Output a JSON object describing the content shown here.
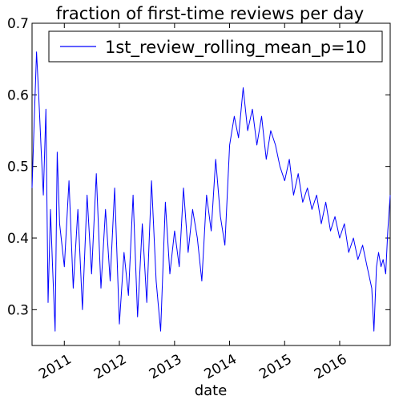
{
  "chart_data": {
    "type": "line",
    "title": "fraction of first-time reviews per day",
    "xlabel": "date",
    "ylabel": "",
    "x_range": [
      "2010-06-01",
      "2016-12-01"
    ],
    "ylim": [
      0.25,
      0.7
    ],
    "x_ticks": [
      {
        "date": "2011-01-01",
        "label": "2011"
      },
      {
        "date": "2012-01-01",
        "label": "2012"
      },
      {
        "date": "2013-01-01",
        "label": "2013"
      },
      {
        "date": "2014-01-01",
        "label": "2014"
      },
      {
        "date": "2015-01-01",
        "label": "2015"
      },
      {
        "date": "2016-01-01",
        "label": "2016"
      }
    ],
    "y_ticks": [
      {
        "value": 0.3,
        "label": "0.3"
      },
      {
        "value": 0.4,
        "label": "0.4"
      },
      {
        "value": 0.5,
        "label": "0.5"
      },
      {
        "value": 0.6,
        "label": "0.6"
      },
      {
        "value": 0.7,
        "label": "0.7"
      }
    ],
    "grid": false,
    "legend_position": "top-right",
    "series": [
      {
        "name": "1st_review_rolling_mean_p=10",
        "color": "#0000ff",
        "points": [
          [
            "2010-06-01",
            0.47
          ],
          [
            "2010-06-15",
            0.56
          ],
          [
            "2010-07-01",
            0.66
          ],
          [
            "2010-07-15",
            0.6
          ],
          [
            "2010-08-01",
            0.52
          ],
          [
            "2010-08-15",
            0.46
          ],
          [
            "2010-09-01",
            0.58
          ],
          [
            "2010-09-15",
            0.31
          ],
          [
            "2010-10-01",
            0.44
          ],
          [
            "2010-10-15",
            0.36
          ],
          [
            "2010-11-01",
            0.27
          ],
          [
            "2010-11-15",
            0.52
          ],
          [
            "2010-12-01",
            0.42
          ],
          [
            "2011-01-01",
            0.36
          ],
          [
            "2011-02-01",
            0.48
          ],
          [
            "2011-03-01",
            0.33
          ],
          [
            "2011-04-01",
            0.44
          ],
          [
            "2011-05-01",
            0.3
          ],
          [
            "2011-06-01",
            0.46
          ],
          [
            "2011-07-01",
            0.35
          ],
          [
            "2011-08-01",
            0.49
          ],
          [
            "2011-09-01",
            0.33
          ],
          [
            "2011-10-01",
            0.44
          ],
          [
            "2011-11-01",
            0.34
          ],
          [
            "2011-12-01",
            0.47
          ],
          [
            "2012-01-01",
            0.28
          ],
          [
            "2012-02-01",
            0.38
          ],
          [
            "2012-03-01",
            0.32
          ],
          [
            "2012-04-01",
            0.46
          ],
          [
            "2012-05-01",
            0.29
          ],
          [
            "2012-06-01",
            0.42
          ],
          [
            "2012-07-01",
            0.31
          ],
          [
            "2012-08-01",
            0.48
          ],
          [
            "2012-09-01",
            0.34
          ],
          [
            "2012-10-01",
            0.27
          ],
          [
            "2012-11-01",
            0.45
          ],
          [
            "2012-12-01",
            0.35
          ],
          [
            "2013-01-01",
            0.41
          ],
          [
            "2013-02-01",
            0.36
          ],
          [
            "2013-03-01",
            0.47
          ],
          [
            "2013-04-01",
            0.38
          ],
          [
            "2013-05-01",
            0.44
          ],
          [
            "2013-06-01",
            0.4
          ],
          [
            "2013-07-01",
            0.34
          ],
          [
            "2013-08-01",
            0.46
          ],
          [
            "2013-09-01",
            0.41
          ],
          [
            "2013-10-01",
            0.51
          ],
          [
            "2013-11-01",
            0.43
          ],
          [
            "2013-12-01",
            0.39
          ],
          [
            "2014-01-01",
            0.53
          ],
          [
            "2014-02-01",
            0.57
          ],
          [
            "2014-03-01",
            0.54
          ],
          [
            "2014-04-01",
            0.61
          ],
          [
            "2014-05-01",
            0.55
          ],
          [
            "2014-06-01",
            0.58
          ],
          [
            "2014-07-01",
            0.53
          ],
          [
            "2014-08-01",
            0.57
          ],
          [
            "2014-09-01",
            0.51
          ],
          [
            "2014-10-01",
            0.55
          ],
          [
            "2014-11-01",
            0.53
          ],
          [
            "2014-12-01",
            0.5
          ],
          [
            "2015-01-01",
            0.48
          ],
          [
            "2015-02-01",
            0.51
          ],
          [
            "2015-03-01",
            0.46
          ],
          [
            "2015-04-01",
            0.49
          ],
          [
            "2015-05-01",
            0.45
          ],
          [
            "2015-06-01",
            0.47
          ],
          [
            "2015-07-01",
            0.44
          ],
          [
            "2015-08-01",
            0.46
          ],
          [
            "2015-09-01",
            0.42
          ],
          [
            "2015-10-01",
            0.45
          ],
          [
            "2015-11-01",
            0.41
          ],
          [
            "2015-12-01",
            0.43
          ],
          [
            "2016-01-01",
            0.4
          ],
          [
            "2016-02-01",
            0.42
          ],
          [
            "2016-03-01",
            0.38
          ],
          [
            "2016-04-01",
            0.4
          ],
          [
            "2016-05-01",
            0.37
          ],
          [
            "2016-06-01",
            0.39
          ],
          [
            "2016-07-01",
            0.36
          ],
          [
            "2016-08-01",
            0.33
          ],
          [
            "2016-08-15",
            0.27
          ],
          [
            "2016-09-01",
            0.36
          ],
          [
            "2016-09-15",
            0.38
          ],
          [
            "2016-10-01",
            0.36
          ],
          [
            "2016-10-15",
            0.37
          ],
          [
            "2016-11-01",
            0.35
          ],
          [
            "2016-11-15",
            0.41
          ],
          [
            "2016-12-01",
            0.46
          ]
        ]
      }
    ]
  }
}
